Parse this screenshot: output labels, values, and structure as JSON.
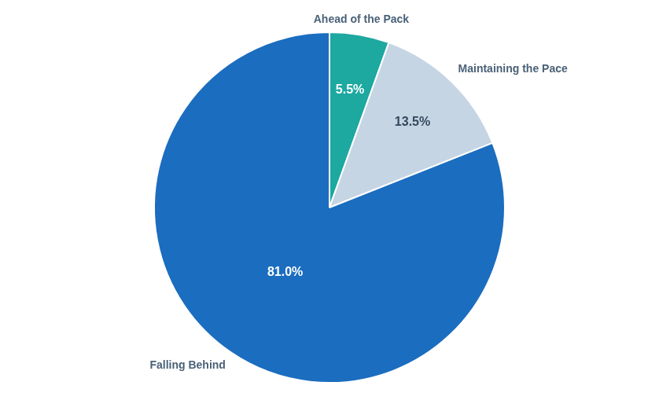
{
  "chart_data": {
    "type": "pie",
    "categories": [
      "Ahead of the Pack",
      "Maintaining the Pace",
      "Falling Behind"
    ],
    "values": [
      5.5,
      13.5,
      81.0
    ],
    "value_labels": [
      "5.5%",
      "13.5%",
      "81.0%"
    ],
    "colors": [
      "#1da8a0",
      "#c5d5e4",
      "#1b6dbf"
    ],
    "data_labels": true
  }
}
